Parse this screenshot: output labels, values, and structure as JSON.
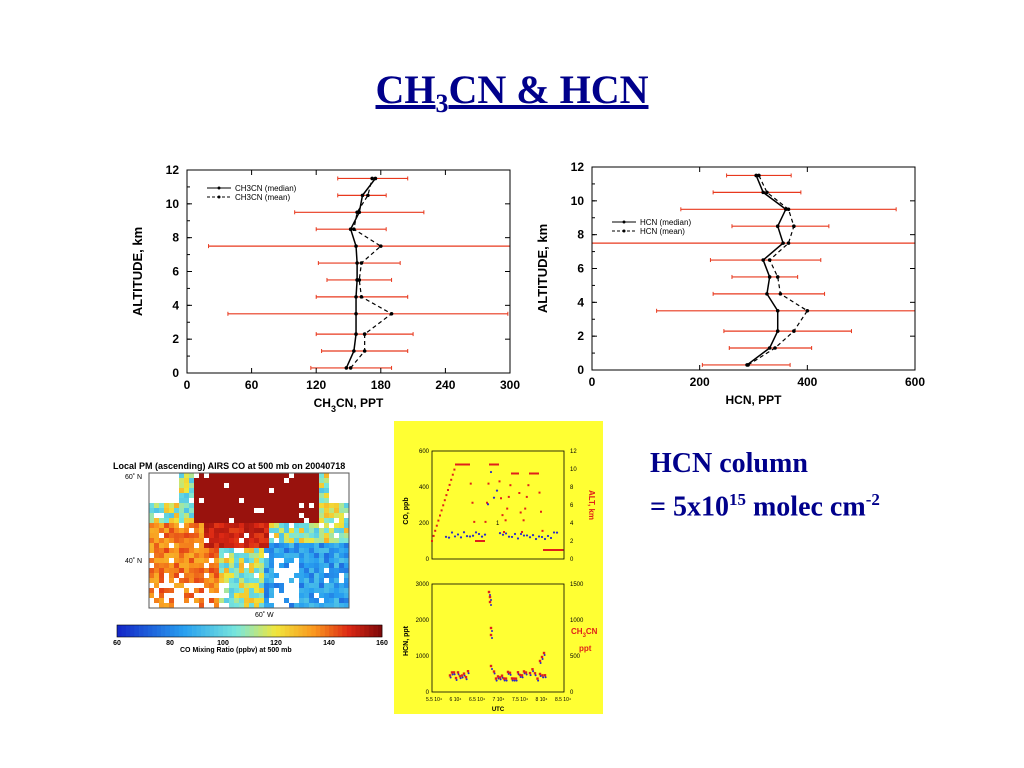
{
  "slide": {
    "title_main": "CH",
    "title_sub": "3",
    "title_rest": "CN & HCN",
    "hcn_column_line1": "HCN column",
    "hcn_column_line2_pre": "= 5x10",
    "hcn_column_line2_sup1": "15",
    "hcn_column_line2_mid": " molec cm",
    "hcn_column_line2_sup2": "-2"
  },
  "colors": {
    "title": "#00008b",
    "errorbar": "#e8391e",
    "yellow_bg": "#ffff33",
    "red_series": "#e0201a",
    "blue_series": "#2a2ac8"
  },
  "chart_data": [
    {
      "type": "line",
      "id": "ch3cn_profile",
      "xlabel": "CH3CN, PPT",
      "xlabel_main": "CH",
      "xlabel_sub": "3",
      "xlabel_rest": "CN, PPT",
      "ylabel": "ALTITUDE, km",
      "xlim": [
        0,
        300
      ],
      "ylim": [
        0,
        12
      ],
      "xticks": [
        0,
        60,
        120,
        180,
        240,
        300
      ],
      "yticks": [
        0,
        2,
        4,
        6,
        8,
        10,
        12
      ],
      "legend_position": "top-left",
      "y": [
        0.3,
        1.3,
        2.3,
        3.5,
        4.5,
        5.5,
        6.5,
        7.5,
        8.5,
        9.5,
        10.5,
        11.5
      ],
      "series": [
        {
          "name": "CH3CN (median)",
          "style": "solid",
          "values": [
            148,
            155,
            157,
            157,
            157,
            158,
            158,
            157,
            152,
            160,
            163,
            175
          ]
        },
        {
          "name": "CH3CN (mean)",
          "style": "dashed",
          "values": [
            152,
            165,
            165,
            190,
            162,
            160,
            162,
            180,
            155,
            158,
            168,
            172
          ]
        }
      ],
      "error_bars": [
        [
          115,
          190
        ],
        [
          125,
          205
        ],
        [
          120,
          210
        ],
        [
          38,
          298
        ],
        [
          120,
          205
        ],
        [
          130,
          190
        ],
        [
          122,
          198
        ],
        [
          20,
          300
        ],
        [
          120,
          185
        ],
        [
          100,
          220
        ],
        [
          140,
          185
        ],
        [
          140,
          205
        ]
      ]
    },
    {
      "type": "line",
      "id": "hcn_profile",
      "xlabel": "HCN, PPT",
      "ylabel": "ALTITUDE, km",
      "xlim": [
        0,
        600
      ],
      "ylim": [
        0,
        12
      ],
      "xticks": [
        0,
        200,
        400,
        600
      ],
      "yticks": [
        0,
        2,
        4,
        6,
        8,
        10,
        12
      ],
      "legend_position": "middle-left",
      "y": [
        0.3,
        1.3,
        2.3,
        3.5,
        4.5,
        5.5,
        6.5,
        7.5,
        8.5,
        9.5,
        10.5,
        11.5
      ],
      "series": [
        {
          "name": "HCN (median)",
          "style": "solid",
          "values": [
            288,
            330,
            345,
            345,
            325,
            330,
            318,
            355,
            345,
            360,
            318,
            305
          ]
        },
        {
          "name": "HCN (mean)",
          "style": "dashed",
          "values": [
            290,
            340,
            375,
            400,
            350,
            345,
            330,
            365,
            375,
            365,
            325,
            310
          ]
        }
      ],
      "error_bars": [
        [
          205,
          368
        ],
        [
          255,
          408
        ],
        [
          245,
          482
        ],
        [
          120,
          600
        ],
        [
          225,
          432
        ],
        [
          260,
          382
        ],
        [
          220,
          425
        ],
        [
          0,
          600
        ],
        [
          260,
          440
        ],
        [
          165,
          565
        ],
        [
          225,
          388
        ],
        [
          250,
          370
        ]
      ]
    }
  ],
  "map": {
    "title": "Local PM (ascending) AIRS CO at 500 mb on 20040718",
    "lat_top": "60˚ N",
    "lat_mid": "40˚ N",
    "lon": "60˚ W",
    "colorbar_ticks": [
      "60",
      "80",
      "100",
      "120",
      "140",
      "160"
    ],
    "colorbar_label": "CO Mixing Ratio (ppbv) at 500 mb"
  },
  "timeseries": {
    "top_ylabel_left": "CO, ppb",
    "top_ylabel_right": "ALT, km",
    "top_left_ticks": [
      "0",
      "200",
      "400",
      "600"
    ],
    "top_right_ticks": [
      "0",
      "2",
      "4",
      "6",
      "8",
      "10",
      "12"
    ],
    "top_annot": "1",
    "bot_ylabel_left": "HCN, ppt",
    "bot_ylabel_right_main": "CH",
    "bot_ylabel_right_sub": "3",
    "bot_ylabel_right_rest": "CN",
    "bot_ylabel_right_unit": "ppt",
    "bot_left_ticks": [
      "0",
      "1000",
      "2000",
      "3000"
    ],
    "bot_right_ticks": [
      "0",
      "500",
      "1000",
      "1500"
    ],
    "x_ticks": [
      "5.5 10⁴",
      "6 10⁴",
      "6.5 10⁴",
      "7 10⁴",
      "7.5 10⁴",
      "8 10⁴",
      "8.5 10⁴"
    ],
    "xlabel": "UTC"
  }
}
